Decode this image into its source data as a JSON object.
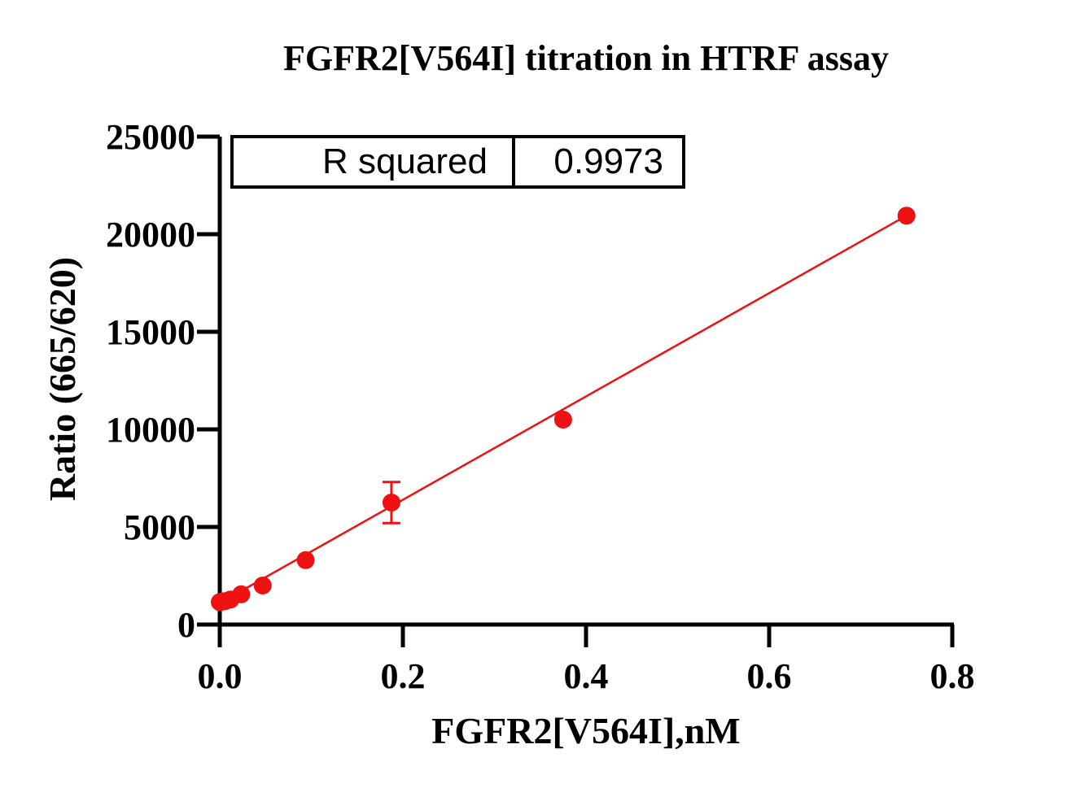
{
  "chart_data": {
    "type": "scatter",
    "title": "FGFR2[V564I] titration in HTRF assay",
    "xlabel": "FGFR2[V564I],nM",
    "ylabel": "Ratio (665/620)",
    "xlim": [
      0,
      0.8
    ],
    "ylim": [
      0,
      25000
    ],
    "x_ticks": [
      0,
      0.2,
      0.4,
      0.6,
      0.8
    ],
    "x_tick_labels": [
      "0.0",
      "0.2",
      "0.4",
      "0.6",
      "0.8"
    ],
    "y_ticks": [
      0,
      5000,
      10000,
      15000,
      20000,
      25000
    ],
    "y_tick_labels": [
      "0",
      "5000",
      "10000",
      "15000",
      "20000",
      "25000"
    ],
    "grid": false,
    "series": [
      {
        "color": "#ee1111",
        "points": [
          {
            "x": 0.0,
            "y": 1150
          },
          {
            "x": 0.0029,
            "y": 1180
          },
          {
            "x": 0.0059,
            "y": 1200
          },
          {
            "x": 0.0117,
            "y": 1280
          },
          {
            "x": 0.0234,
            "y": 1550
          },
          {
            "x": 0.0469,
            "y": 2000
          },
          {
            "x": 0.0938,
            "y": 3300
          },
          {
            "x": 0.1875,
            "y": 6250,
            "err": 1050
          },
          {
            "x": 0.375,
            "y": 10500
          },
          {
            "x": 0.75,
            "y": 20950
          }
        ]
      }
    ],
    "fit_line": {
      "type": "linear",
      "color": "#ee1111",
      "x": [
        0.0,
        0.75
      ],
      "y": [
        1100,
        20950
      ]
    },
    "stats_box": {
      "label": "R squared",
      "value": "0.9973"
    }
  }
}
